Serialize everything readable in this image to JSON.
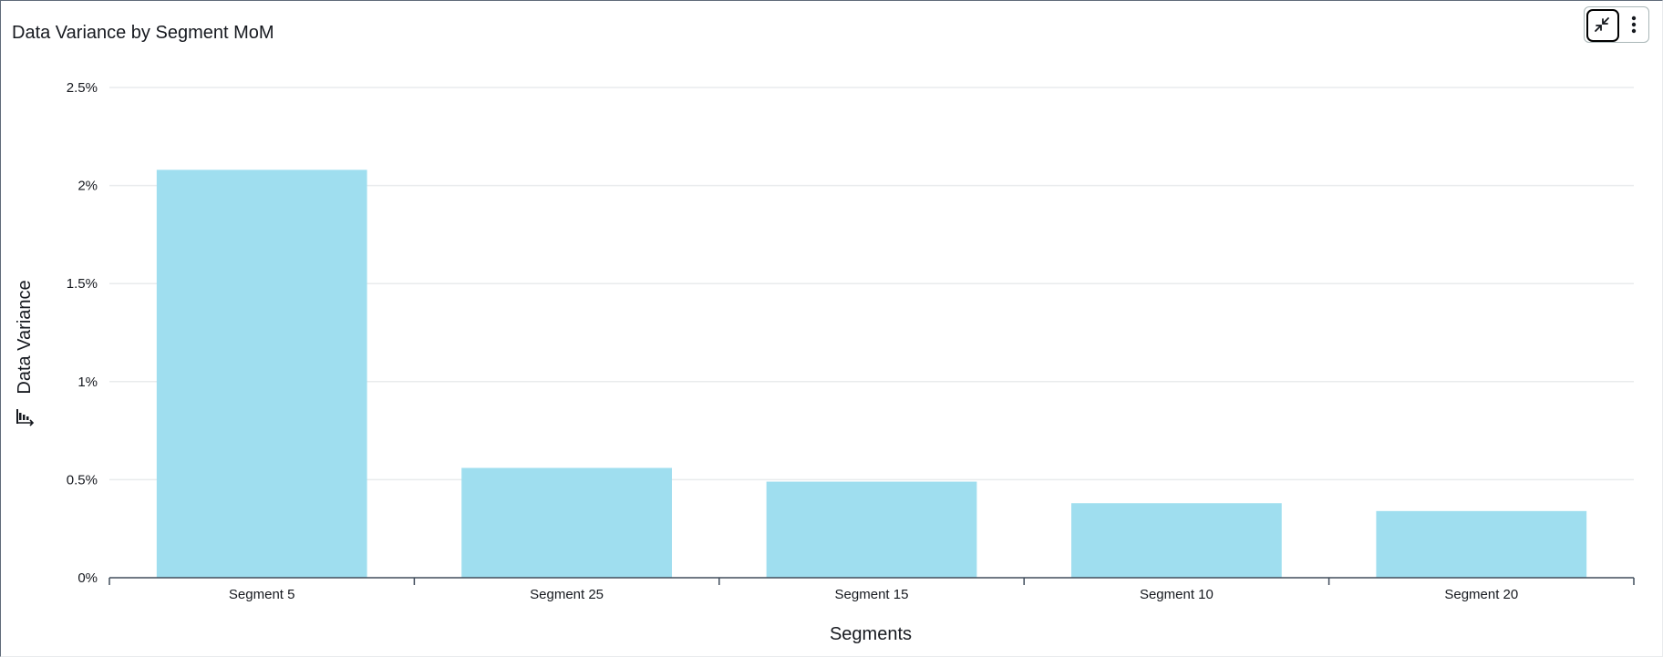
{
  "panel": {
    "title": "Data Variance by Segment MoM",
    "collapse_icon": "collapse-arrows-icon",
    "more_icon": "vertical-ellipsis-icon",
    "sort_icon": "sort-descending-icon"
  },
  "chart_data": {
    "type": "bar",
    "title": "Data Variance by Segment MoM",
    "xlabel": "Segments",
    "ylabel": "Data Variance",
    "categories": [
      "Segment 5",
      "Segment 25",
      "Segment 15",
      "Segment 10",
      "Segment 20"
    ],
    "values": [
      2.08,
      0.56,
      0.49,
      0.38,
      0.34
    ],
    "unit": "%",
    "ylim": [
      0,
      2.5
    ],
    "yticks": [
      "0%",
      "0.5%",
      "1%",
      "1.5%",
      "2%",
      "2.5%"
    ],
    "grid": true,
    "legend": "none",
    "bar_color": "#9fdeef"
  }
}
